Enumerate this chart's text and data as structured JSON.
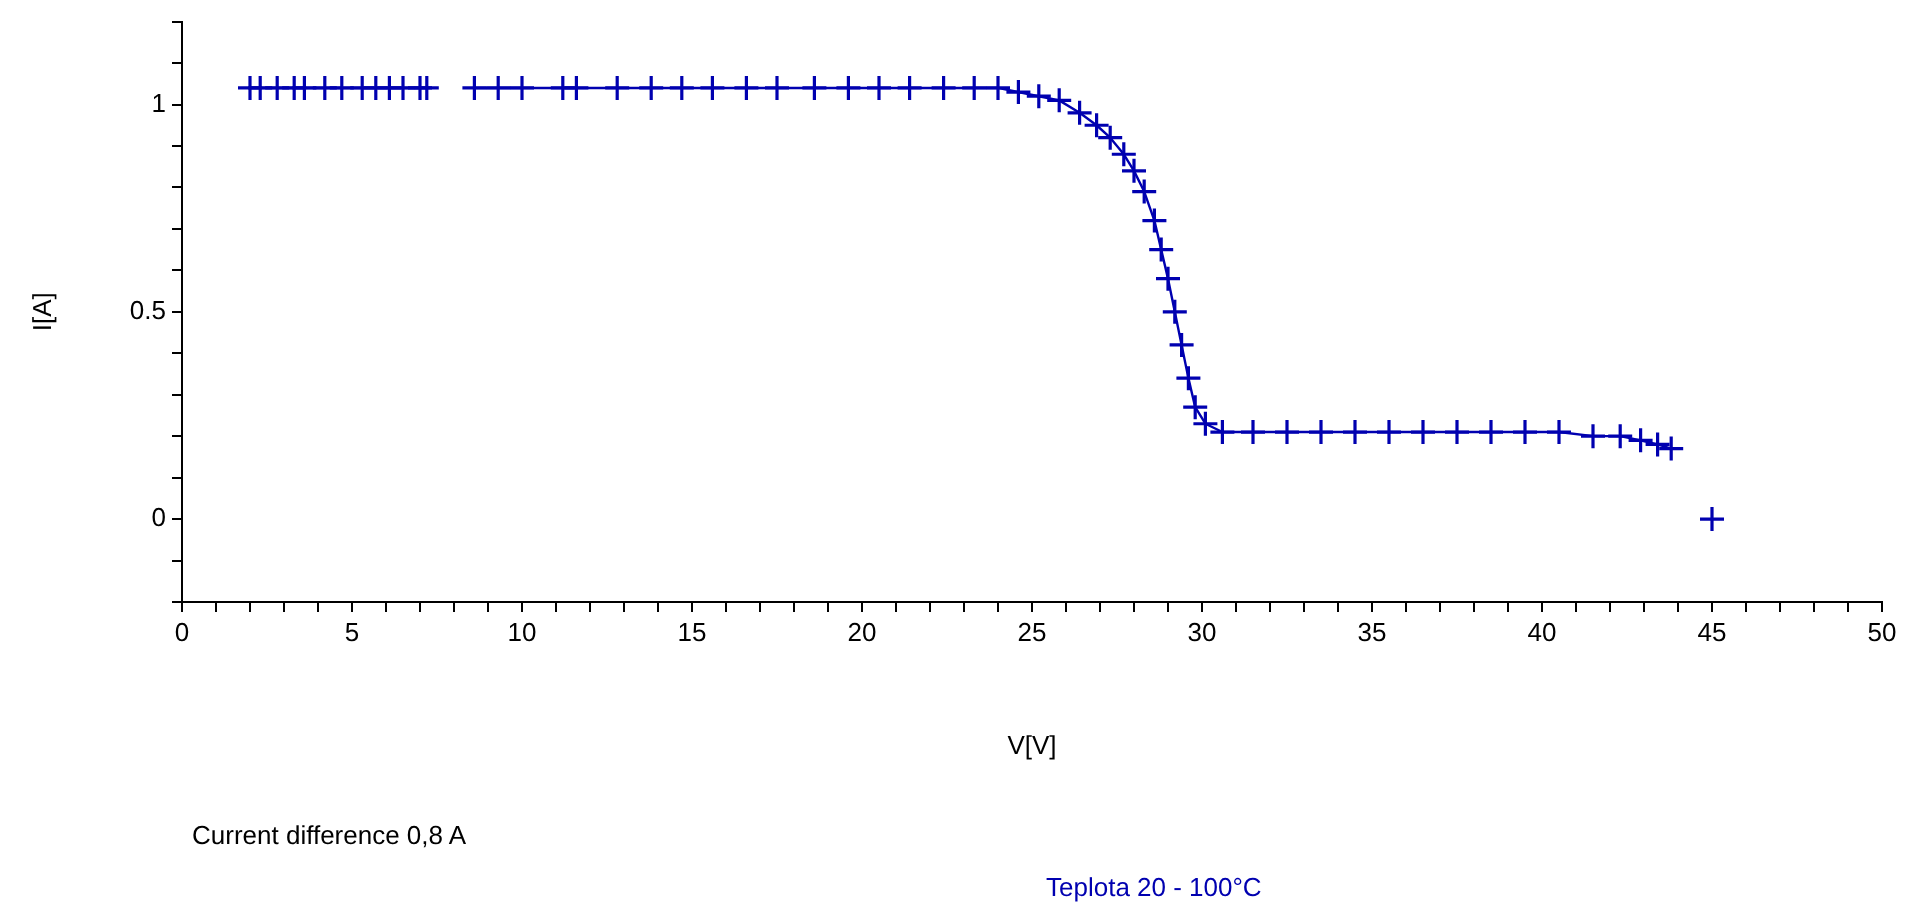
{
  "chart_data": {
    "type": "line",
    "xlabel": "V[V]",
    "ylabel": "I[A]",
    "annotations": [
      "Current difference 0,8  A",
      "Teplota  20 - 100°C"
    ],
    "x": [
      2,
      2.3,
      2.8,
      3.3,
      3.6,
      4.2,
      4.7,
      5.3,
      5.7,
      6.1,
      6.5,
      7.0,
      7.2,
      7.9,
      8.6,
      9.3,
      10,
      11.2,
      11.6,
      12.8,
      13.8,
      14.7,
      15.6,
      16.6,
      17.5,
      18.6,
      19.6,
      20.5,
      21.4,
      22.4,
      23.3,
      24.0,
      24.6,
      25.2,
      25.8,
      26.4,
      26.9,
      27.3,
      27.7,
      28.0,
      28.3,
      28.6,
      28.8,
      29.0,
      29.2,
      29.4,
      29.6,
      29.8,
      30.1,
      30.6,
      31.5,
      32.5,
      33.5,
      34.5,
      35.5,
      36.5,
      37.5,
      38.5,
      39.5,
      40.5,
      41.5,
      42.3,
      42.9,
      43.4,
      43.8,
      44.5,
      45.0
    ],
    "series": [
      {
        "color": "#0000b0",
        "values": [
          1.04,
          1.04,
          1.04,
          1.04,
          1.04,
          1.04,
          1.04,
          1.04,
          1.04,
          1.04,
          1.04,
          1.04,
          1.04,
          null,
          1.04,
          1.04,
          1.04,
          1.04,
          1.04,
          1.04,
          1.04,
          1.04,
          1.04,
          1.04,
          1.04,
          1.04,
          1.04,
          1.04,
          1.04,
          1.04,
          1.04,
          1.04,
          1.03,
          1.02,
          1.01,
          0.98,
          0.95,
          0.92,
          0.88,
          0.84,
          0.79,
          0.72,
          0.65,
          0.58,
          0.5,
          0.42,
          0.34,
          0.27,
          0.23,
          0.21,
          0.21,
          0.21,
          0.21,
          0.21,
          0.21,
          0.21,
          0.21,
          0.21,
          0.21,
          0.21,
          0.2,
          0.2,
          0.19,
          0.18,
          0.17,
          null,
          0.0
        ]
      }
    ],
    "marker": "cross",
    "line_style": "solid",
    "grid": false,
    "legend": false,
    "xlim": [
      0,
      50
    ],
    "xticks": [
      0,
      {
        "value": 1,
        "label": null
      },
      {
        "value": 2,
        "label": null
      },
      {
        "value": 3,
        "label": null
      },
      {
        "value": 4,
        "label": null
      },
      5,
      {
        "value": 6,
        "label": null
      },
      {
        "value": 7,
        "label": null
      },
      {
        "value": 8,
        "label": null
      },
      {
        "value": 9,
        "label": null
      },
      10,
      {
        "value": 11,
        "label": null
      },
      {
        "value": 12,
        "label": null
      },
      {
        "value": 13,
        "label": null
      },
      {
        "value": 14,
        "label": null
      },
      15,
      {
        "value": 16,
        "label": null
      },
      {
        "value": 17,
        "label": null
      },
      {
        "value": 18,
        "label": null
      },
      {
        "value": 19,
        "label": null
      },
      20,
      {
        "value": 21,
        "label": null
      },
      {
        "value": 22,
        "label": null
      },
      {
        "value": 23,
        "label": null
      },
      {
        "value": 24,
        "label": null
      },
      25,
      {
        "value": 26,
        "label": null
      },
      {
        "value": 27,
        "label": null
      },
      {
        "value": 28,
        "label": null
      },
      {
        "value": 29,
        "label": null
      },
      30,
      {
        "value": 31,
        "label": null
      },
      {
        "value": 32,
        "label": null
      },
      {
        "value": 33,
        "label": null
      },
      {
        "value": 34,
        "label": null
      },
      35,
      {
        "value": 36,
        "label": null
      },
      {
        "value": 37,
        "label": null
      },
      {
        "value": 38,
        "label": null
      },
      {
        "value": 39,
        "label": null
      },
      40,
      {
        "value": 41,
        "label": null
      },
      {
        "value": 42,
        "label": null
      },
      {
        "value": 43,
        "label": null
      },
      {
        "value": 44,
        "label": null
      },
      45,
      {
        "value": 46,
        "label": null
      },
      {
        "value": 47,
        "label": null
      },
      {
        "value": 48,
        "label": null
      },
      {
        "value": 49,
        "label": null
      },
      50
    ],
    "ylim": [
      -0.2,
      1.2
    ],
    "yticks": [
      {
        "value": -0.2,
        "label": null
      },
      {
        "value": -0.1,
        "label": null
      },
      0,
      {
        "value": 0.1,
        "label": null
      },
      {
        "value": 0.2,
        "label": null
      },
      {
        "value": 0.3,
        "label": null
      },
      {
        "value": 0.4,
        "label": null
      },
      0.5,
      {
        "value": 0.6,
        "label": null
      },
      {
        "value": 0.7,
        "label": null
      },
      {
        "value": 0.8,
        "label": null
      },
      {
        "value": 0.9,
        "label": null
      },
      1,
      {
        "value": 1.1,
        "label": null
      },
      {
        "value": 1.2,
        "label": null
      }
    ]
  }
}
